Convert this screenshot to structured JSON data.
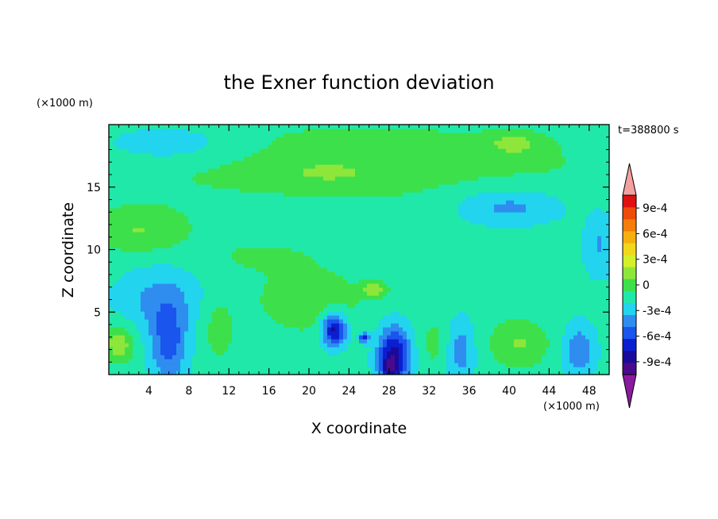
{
  "chart_data": {
    "type": "heatmap",
    "title": "the Exner function deviation",
    "xlabel": "X coordinate",
    "ylabel": "Z coordinate",
    "x_unit": "(×1000 m)",
    "y_unit": "(×1000 m)",
    "time_label": "t=388800 s",
    "xlim": [
      0,
      50
    ],
    "ylim": [
      0,
      20
    ],
    "x_ticks": [
      4,
      8,
      12,
      16,
      20,
      24,
      28,
      32,
      36,
      40,
      44,
      48
    ],
    "y_ticks": [
      5,
      10,
      15
    ],
    "colorbar": {
      "levels": [
        -0.00105,
        -0.0009,
        -0.00075,
        -0.0006,
        -0.00045,
        -0.0003,
        -0.00015,
        0,
        0.00015,
        0.0003,
        0.00045,
        0.0006,
        0.00075,
        0.0009,
        0.00105
      ],
      "colors": [
        "#4a0a8c",
        "#1a0a9c",
        "#0b1fd0",
        "#1a55ee",
        "#2f8df0",
        "#22d4ee",
        "#20e8a8",
        "#3de04a",
        "#8ee63a",
        "#d4f02a",
        "#f0d81a",
        "#f5b010",
        "#f57d0a",
        "#ee4a0a",
        "#e01010"
      ],
      "under_color": "#8a1aa0",
      "over_color": "#f4a0a0",
      "tick_labels": [
        "-9e-4",
        "-6e-4",
        "-3e-4",
        "0",
        "3e-4",
        "6e-4",
        "9e-4"
      ],
      "tick_values": [
        -0.0009,
        -0.0006,
        -0.0003,
        0,
        0.0003,
        0.0006,
        0.0009
      ]
    },
    "background_value": -0.0001,
    "field_features": [
      {
        "x": 25,
        "z": 17,
        "value": 0.00016,
        "sx": 30,
        "sz": 4
      },
      {
        "x": 40.5,
        "z": 18.5,
        "value": 0.00024,
        "sx": 2.5,
        "sz": 0.8
      },
      {
        "x": 22,
        "z": 16.2,
        "value": 0.00022,
        "sx": 3,
        "sz": 0.6
      },
      {
        "x": 3,
        "z": 11.5,
        "value": 0.00024,
        "sx": 5,
        "sz": 1.8
      },
      {
        "x": 6,
        "z": 18.5,
        "value": -0.00022,
        "sx": 7,
        "sz": 1.5
      },
      {
        "x": 40,
        "z": 13.5,
        "value": -0.00028,
        "sx": 5.5,
        "sz": 1.5
      },
      {
        "x": 20,
        "z": 6,
        "value": 0.00019,
        "sx": 6,
        "sz": 3
      },
      {
        "x": 26.5,
        "z": 6.8,
        "value": 0.00033,
        "sx": 1.2,
        "sz": 0.6
      },
      {
        "x": 6,
        "z": 2.5,
        "value": -0.00042,
        "sx": 1.8,
        "sz": 3
      },
      {
        "x": 1,
        "z": 2.5,
        "value": 0.00036,
        "sx": 1.5,
        "sz": 1.5
      },
      {
        "x": 11,
        "z": 3.5,
        "value": 0.00018,
        "sx": 1.5,
        "sz": 2.5
      },
      {
        "x": 22.5,
        "z": 3.6,
        "value": -0.00075,
        "sx": 1.2,
        "sz": 1.3
      },
      {
        "x": 25.5,
        "z": 3,
        "value": -0.00062,
        "sx": 0.5,
        "sz": 0.4
      },
      {
        "x": 28.5,
        "z": 1.6,
        "value": -0.00074,
        "sx": 1.6,
        "sz": 2.2
      },
      {
        "x": 28,
        "z": 0.6,
        "value": -0.00035,
        "sx": 0.8,
        "sz": 0.8
      },
      {
        "x": 33,
        "z": 2.5,
        "value": 0.00016,
        "sx": 2,
        "sz": 2.5
      },
      {
        "x": 35,
        "z": 2,
        "value": -0.00032,
        "sx": 1.5,
        "sz": 2.5
      },
      {
        "x": 41,
        "z": 2.5,
        "value": 0.00026,
        "sx": 3,
        "sz": 2
      },
      {
        "x": 47,
        "z": 2,
        "value": -0.00034,
        "sx": 1.5,
        "sz": 2
      },
      {
        "x": 49,
        "z": 10.5,
        "value": -0.00022,
        "sx": 1.5,
        "sz": 2.5
      },
      {
        "x": 5,
        "z": 6,
        "value": -0.00024,
        "sx": 4,
        "sz": 2.5
      },
      {
        "x": 15,
        "z": 9.5,
        "value": 0.00012,
        "sx": 5,
        "sz": 1.2
      }
    ]
  }
}
